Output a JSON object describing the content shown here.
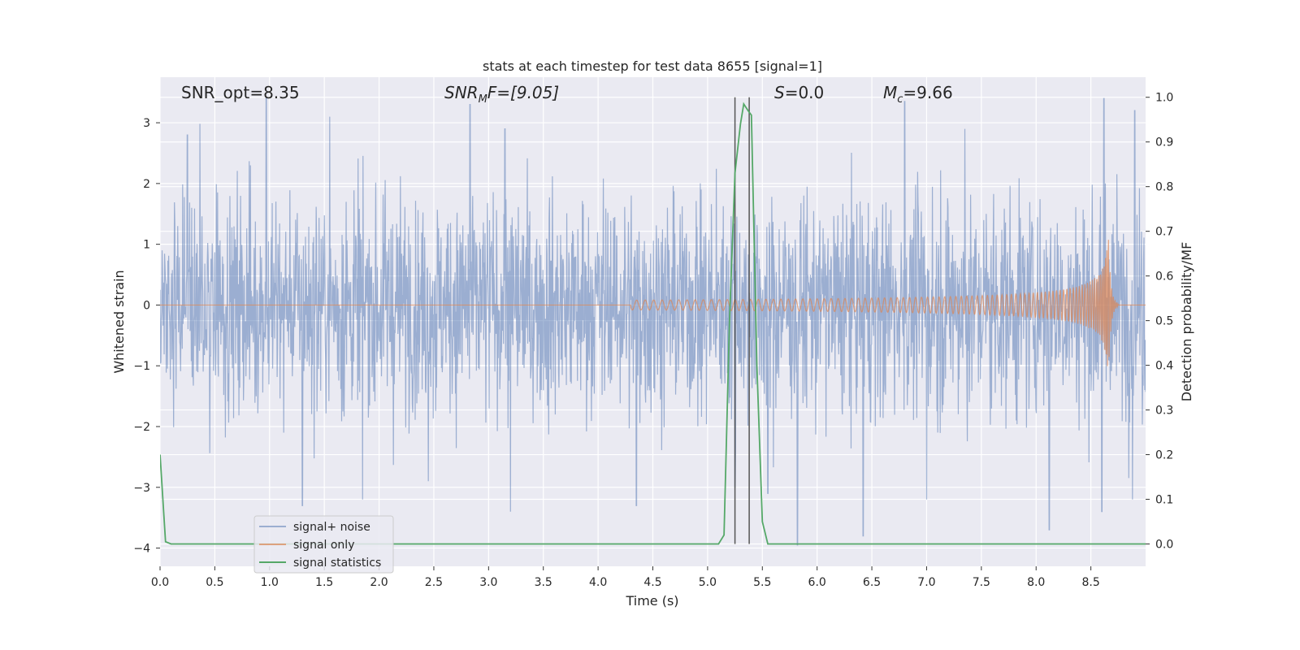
{
  "chart_data": {
    "type": "line",
    "title": "stats at each timestep for test data 8655 [signal=1]",
    "xlabel": "Time (s)",
    "ylabel": "Whitened strain",
    "ylabel_right": "Detection probability/MF",
    "xlim": [
      0.0,
      9.0
    ],
    "ylim": [
      -4.3,
      3.75
    ],
    "ylim_right": [
      -0.05,
      1.045
    ],
    "xticks": [
      0.0,
      0.5,
      1.0,
      1.5,
      2.0,
      2.5,
      3.0,
      3.5,
      4.0,
      4.5,
      5.0,
      5.5,
      6.0,
      6.5,
      7.0,
      7.5,
      8.0,
      8.5
    ],
    "yticks": [
      -4,
      -3,
      -2,
      -1,
      0,
      1,
      2,
      3
    ],
    "yticks_right": [
      0.0,
      0.1,
      0.2,
      0.3,
      0.4,
      0.5,
      0.6,
      0.7,
      0.8,
      0.9,
      1.0
    ],
    "grid": true,
    "legend_position": "lower-left",
    "colors": {
      "noise": "#4c72b0",
      "signal": "#dd8452",
      "stats": "#55a868",
      "vline": "#555555",
      "background": "#eaeaf2"
    },
    "annotations": {
      "snr_opt": "SNR_opt=8.35",
      "snr_mf_base": "SNR",
      "snr_mf_sub": "M",
      "snr_mf_rest": "F=[9.05]",
      "s_var": "S",
      "s_val": "=0.0",
      "mc_var": "M",
      "mc_sub": "c",
      "mc_val": "=9.66"
    },
    "vertical_lines_x": [
      5.25,
      5.38
    ],
    "series": [
      {
        "name": "signal+ noise",
        "kind": "noise",
        "duration": 9.0,
        "envelope": 1.8,
        "peaks": [
          [
            0.97,
            3.4
          ],
          [
            0.25,
            2.8
          ],
          [
            1.55,
            3.1
          ],
          [
            2.83,
            3.3
          ],
          [
            3.15,
            2.9
          ],
          [
            5.25,
            2.4
          ],
          [
            6.8,
            3.35
          ],
          [
            7.35,
            2.9
          ],
          [
            8.62,
            3.45
          ],
          [
            8.9,
            3.2
          ],
          [
            1.3,
            -3.3
          ],
          [
            1.85,
            -3.2
          ],
          [
            2.45,
            -2.9
          ],
          [
            3.2,
            -3.4
          ],
          [
            4.35,
            -3.3
          ],
          [
            5.25,
            -3.0
          ],
          [
            5.55,
            -3.1
          ],
          [
            5.82,
            -4.0
          ],
          [
            6.42,
            -3.8
          ],
          [
            7.0,
            -3.2
          ],
          [
            8.12,
            -3.7
          ],
          [
            8.6,
            -3.4
          ],
          [
            8.88,
            -3.2
          ]
        ]
      },
      {
        "name": "signal only",
        "kind": "chirp",
        "start_time": 4.3,
        "merger_time": 8.66,
        "peak_amp": 1.2,
        "ringdown_end": 8.75
      },
      {
        "name": "signal statistics",
        "axis": "right",
        "x": [
          0.0,
          0.05,
          0.1,
          0.15,
          5.1,
          5.15,
          5.2,
          5.25,
          5.3,
          5.33,
          5.37,
          5.4,
          5.45,
          5.5,
          5.55,
          5.6,
          9.0
        ],
        "y": [
          0.2,
          0.005,
          0.0,
          0.0,
          0.0,
          0.02,
          0.5,
          0.83,
          0.94,
          0.985,
          0.97,
          0.96,
          0.4,
          0.05,
          0.0,
          0.0,
          0.0
        ]
      }
    ]
  }
}
